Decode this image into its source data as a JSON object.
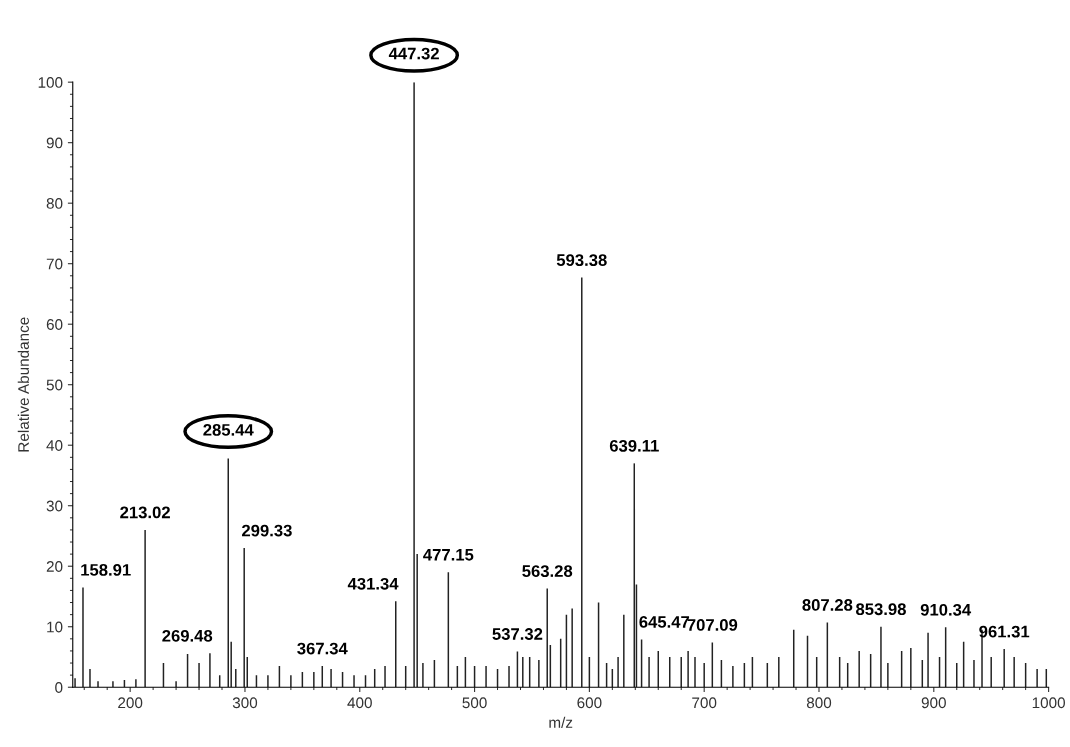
{
  "chart_data": {
    "type": "bar",
    "xlabel": "m/z",
    "ylabel": "Relative Abundance",
    "xlim": [
      150,
      1000
    ],
    "ylim": [
      0,
      100
    ],
    "xticks": [
      200,
      300,
      400,
      500,
      600,
      700,
      800,
      900,
      1000
    ],
    "yticks": [
      0,
      10,
      20,
      30,
      40,
      50,
      60,
      70,
      80,
      90,
      100
    ],
    "grid": false,
    "series": [
      {
        "color": "#222222",
        "x": [
          152,
          158.91,
          165,
          172,
          185,
          195,
          205,
          213.02,
          229,
          240,
          250,
          260,
          269.48,
          278,
          285.44,
          288,
          292,
          299.33,
          302,
          310,
          320,
          330,
          340,
          350,
          360,
          367.34,
          375,
          385,
          395,
          405,
          413,
          422,
          431.34,
          440,
          447.32,
          450,
          455,
          465,
          477.15,
          485,
          492,
          500,
          510,
          520,
          530,
          537.32,
          542,
          548,
          556,
          563.28,
          566,
          575,
          580,
          585,
          593.38,
          600,
          608,
          615,
          620,
          625,
          630,
          639.11,
          641,
          645.47,
          652,
          660,
          670,
          680,
          686,
          692,
          700,
          707.09,
          715,
          725,
          735,
          742,
          755,
          765,
          778,
          790,
          798,
          807.28,
          818,
          825,
          835,
          845,
          853.98,
          860,
          872,
          880,
          890,
          895,
          905,
          910.34,
          920,
          926,
          935,
          942,
          950,
          961.31,
          970,
          980,
          990,
          998
        ],
        "values": [
          1.5,
          16.5,
          3,
          1,
          1,
          1.2,
          1.3,
          26,
          4,
          1,
          5.5,
          4,
          5.6,
          2,
          37.8,
          7.5,
          3,
          23,
          5,
          2,
          2,
          3.5,
          2,
          2.5,
          2.5,
          3.5,
          3,
          2.5,
          2,
          2,
          3,
          3.5,
          14.2,
          3.5,
          100,
          22,
          4,
          4.5,
          19,
          3.5,
          5,
          3.5,
          3.5,
          3,
          3.5,
          5.9,
          5,
          5,
          4.5,
          16.3,
          7,
          8,
          12,
          13,
          67.7,
          5,
          14,
          4,
          3,
          5,
          12,
          37,
          17,
          7.9,
          5,
          6,
          5,
          5,
          6,
          5,
          4,
          7.4,
          4.5,
          3.5,
          4,
          5,
          4,
          5,
          9.5,
          8.5,
          5,
          10.7,
          5,
          4,
          6,
          5.5,
          10,
          4,
          6,
          6.5,
          4.5,
          9,
          5,
          9.9,
          4,
          7.5,
          4.5,
          9.5,
          5,
          6.3,
          5,
          4,
          3,
          3
        ]
      }
    ],
    "annotations": [
      {
        "text": "447.32",
        "x": 447.32,
        "y": 100
      },
      {
        "text": "285.44",
        "x": 285.44,
        "y": 37.8
      },
      {
        "text": "158.91",
        "x": 158.91,
        "y": 16.5
      },
      {
        "text": "213.02",
        "x": 213.02,
        "y": 26
      },
      {
        "text": "269.48",
        "x": 269.48,
        "y": 5.6
      },
      {
        "text": "299.33",
        "x": 299.33,
        "y": 23
      },
      {
        "text": "367.34",
        "x": 367.34,
        "y": 3.5
      },
      {
        "text": "431.34",
        "x": 431.34,
        "y": 14.2
      },
      {
        "text": "477.15",
        "x": 477.15,
        "y": 19
      },
      {
        "text": "537.32",
        "x": 537.32,
        "y": 5.9
      },
      {
        "text": "563.28",
        "x": 563.28,
        "y": 16.3
      },
      {
        "text": "593.38",
        "x": 593.38,
        "y": 67.7
      },
      {
        "text": "639.11",
        "x": 639.11,
        "y": 37
      },
      {
        "text": "645.47",
        "x": 645.47,
        "y": 7.9
      },
      {
        "text": "707.09",
        "x": 707.09,
        "y": 7.4
      },
      {
        "text": "807.28",
        "x": 807.28,
        "y": 10.7
      },
      {
        "text": "853.98",
        "x": 853.98,
        "y": 10
      },
      {
        "text": "910.34",
        "x": 910.34,
        "y": 9.9
      },
      {
        "text": "961.31",
        "x": 961.31,
        "y": 6.3
      }
    ]
  }
}
